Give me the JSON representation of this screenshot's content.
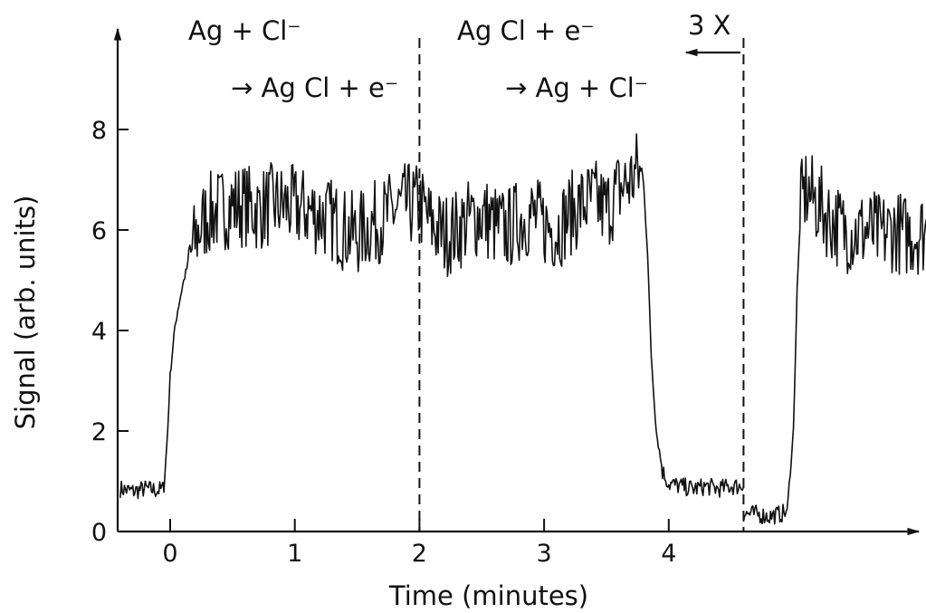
{
  "chart_data": {
    "type": "line",
    "xlabel": "Time (minutes)",
    "ylabel": "Signal (arb. units)",
    "xlim": [
      -0.4,
      6.1
    ],
    "ylim": [
      0,
      10.0
    ],
    "x_ticks": [
      0,
      1,
      2,
      3,
      4
    ],
    "y_ticks": [
      0,
      2,
      4,
      6,
      8
    ],
    "grid": false,
    "series": [
      {
        "segment": "before",
        "x": [
          -0.4,
          -0.3,
          -0.2,
          -0.1,
          -0.05,
          -0.02,
          0.0,
          0.03,
          0.06,
          0.1,
          0.15,
          0.2,
          0.25,
          0.3,
          0.4,
          0.5,
          0.6,
          0.7,
          0.8,
          0.9,
          1.0,
          1.1,
          1.2,
          1.3,
          1.4,
          1.5,
          1.6,
          1.7,
          1.8,
          1.9,
          2.0,
          2.1,
          2.2,
          2.3,
          2.4,
          2.5,
          2.6,
          2.7,
          2.8,
          2.9,
          3.0,
          3.1,
          3.2,
          3.3,
          3.4,
          3.5,
          3.6,
          3.7,
          3.75,
          3.8,
          3.83,
          3.86,
          3.9,
          3.95,
          4.0,
          4.1,
          4.2,
          4.3,
          4.4,
          4.5,
          4.6
        ],
        "y": [
          0.85,
          0.8,
          0.85,
          0.82,
          0.85,
          2.0,
          3.1,
          3.9,
          4.4,
          4.9,
          5.4,
          5.8,
          6.1,
          6.3,
          6.4,
          6.5,
          6.5,
          6.4,
          6.5,
          6.5,
          6.45,
          6.4,
          6.3,
          6.2,
          6.0,
          5.9,
          6.1,
          6.2,
          6.4,
          6.5,
          6.5,
          6.1,
          5.9,
          6.0,
          6.2,
          6.3,
          6.1,
          6.0,
          6.2,
          6.3,
          6.1,
          6.0,
          6.3,
          6.5,
          6.6,
          6.4,
          6.8,
          7.0,
          7.2,
          6.9,
          5.5,
          3.5,
          2.0,
          1.2,
          0.95,
          0.9,
          0.85,
          0.9,
          0.85,
          0.9,
          0.9
        ]
      },
      {
        "segment": "after_3x",
        "x": [
          4.6,
          4.7,
          4.8,
          4.9,
          4.95,
          5.0,
          5.03,
          5.06,
          5.1,
          5.2,
          5.3,
          5.4,
          5.5,
          5.6,
          5.7,
          5.8,
          5.9,
          6.0,
          6.1
        ],
        "y": [
          0.35,
          0.35,
          0.3,
          0.35,
          0.4,
          2.0,
          4.8,
          6.5,
          6.8,
          6.5,
          6.2,
          6.0,
          5.95,
          6.0,
          5.9,
          6.0,
          5.9,
          5.95,
          6.0
        ]
      }
    ],
    "dividers_x": [
      2,
      4.6
    ],
    "annotations": [
      {
        "line1": "Ag + Cl⁻",
        "line2": "→ Ag Cl + e⁻"
      },
      {
        "line1": "Ag Cl + e⁻",
        "line2": "→ Ag + Cl⁻"
      },
      {
        "label": "3 X"
      }
    ]
  }
}
